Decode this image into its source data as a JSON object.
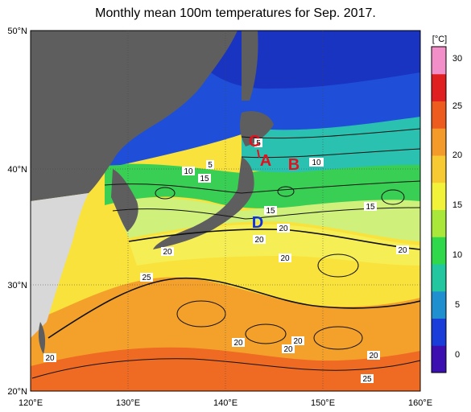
{
  "title": "Monthly mean 100m temperatures for Sep. 2017.",
  "colorbar": {
    "unit": "[°C]",
    "ticks": [
      "30",
      "25",
      "20",
      "15",
      "10",
      "5",
      "0"
    ],
    "colors": [
      "#3b0fb0",
      "#1a3cd8",
      "#1f8fd0",
      "#22c7a0",
      "#2fd84a",
      "#a9e83a",
      "#f2f23a",
      "#f7c932",
      "#f49a2a",
      "#ee5b1e",
      "#e02020",
      "#f28fc8"
    ]
  },
  "axes": {
    "lat_labels": [
      "50°N",
      "40°N",
      "30°N",
      "20°N"
    ],
    "lon_labels": [
      "120°E",
      "130°E",
      "140°E",
      "150°E",
      "160°E"
    ]
  },
  "markers": [
    {
      "id": "C",
      "text": "C",
      "color": "#e3101e"
    },
    {
      "id": "A",
      "text": "A",
      "color": "#e3101e"
    },
    {
      "id": "B",
      "text": "B",
      "color": "#e3101e"
    },
    {
      "id": "D",
      "text": "D",
      "color": "#1030e0"
    }
  ],
  "contour_labels": [
    "5",
    "10",
    "15",
    "5",
    "10",
    "15",
    "15",
    "20",
    "20",
    "20",
    "20",
    "25",
    "20",
    "20",
    "20",
    "20",
    "20",
    "25",
    "20"
  ]
}
